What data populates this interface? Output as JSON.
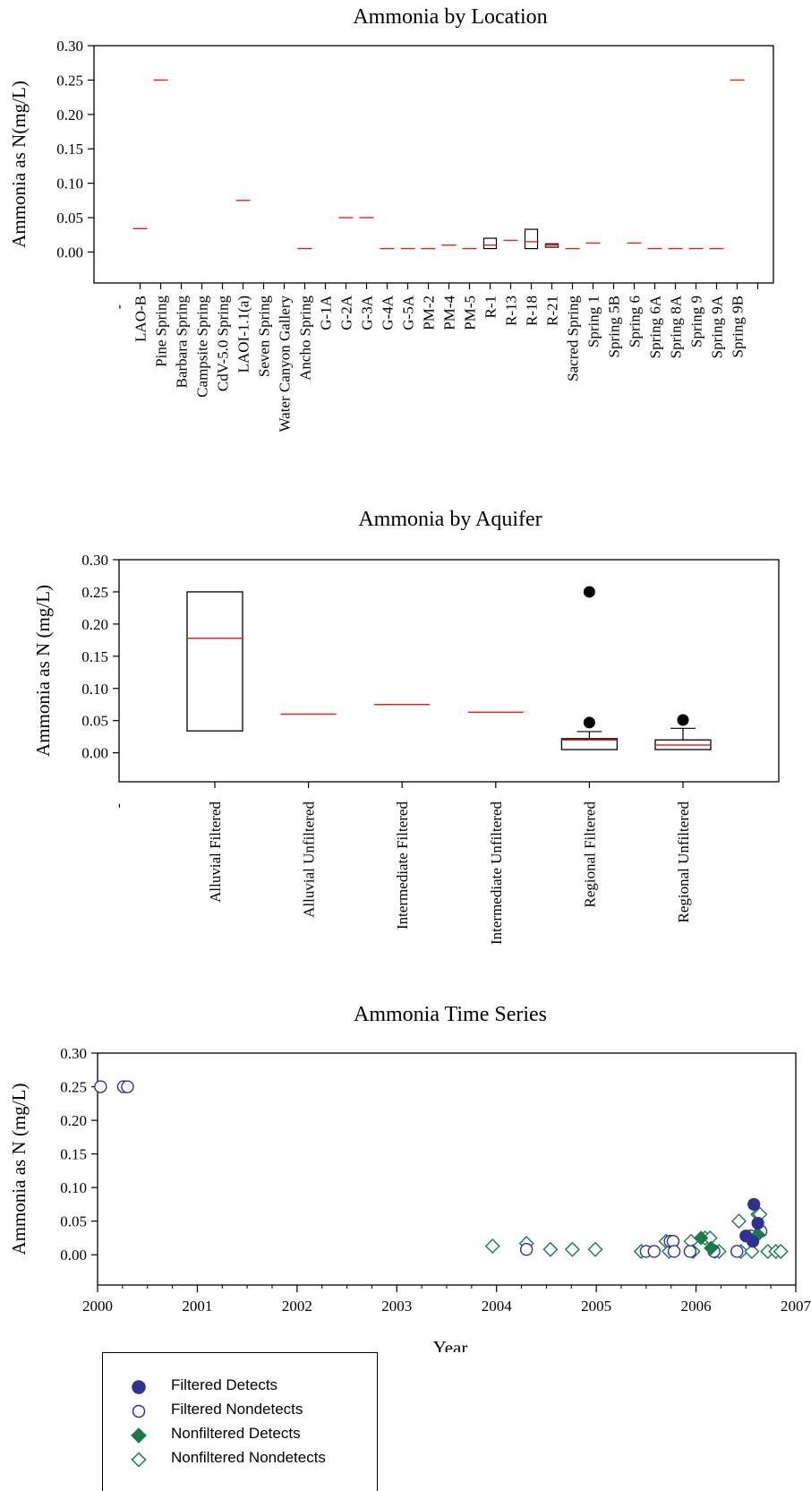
{
  "chart_data": [
    {
      "type": "box",
      "title": "Ammonia by Location",
      "xlabel": "",
      "ylabel": "Ammonia as N(mg/L)",
      "ylim": [
        -0.045,
        0.3
      ],
      "yticks": [
        "0.30",
        "0.25",
        "0.20",
        "0.15",
        "0.10",
        "0.05",
        "0.00"
      ],
      "categories": [
        "-",
        "LAO-B",
        "Pine Spring",
        "Barbara Spring",
        "Campsite Spring",
        "CdV-5.0 Spring",
        "LAOI-1.1(a)",
        "Seven Spring",
        "Water Canyon Gallery",
        "Ancho Spring",
        "G-1A",
        "G-2A",
        "G-3A",
        "G-4A",
        "G-5A",
        "PM-2",
        "PM-4",
        "PM-5",
        "R-1",
        "R-13",
        "R-18",
        "R-21",
        "Sacred Spring",
        "Spring 1",
        "Spring 5B",
        "Spring 6",
        "Spring 6A",
        "Spring 8A",
        "Spring 9",
        "Spring 9A",
        "Spring 9B"
      ],
      "medians": [
        null,
        0.034,
        0.25,
        null,
        null,
        null,
        0.075,
        null,
        null,
        0.005,
        null,
        0.05,
        0.05,
        0.005,
        0.005,
        0.005,
        0.01,
        0.005,
        0.01,
        0.017,
        0.015,
        0.01,
        0.005,
        0.013,
        null,
        0.013,
        0.005,
        0.005,
        0.005,
        0.005,
        0.25
      ],
      "boxes": [
        {
          "category": "R-1",
          "q1": 0.005,
          "q3": 0.02
        },
        {
          "category": "R-18",
          "q1": 0.005,
          "q3": 0.033
        },
        {
          "category": "R-21",
          "q1": 0.007,
          "q3": 0.012
        }
      ]
    },
    {
      "type": "box",
      "title": "Ammonia by Aquifer",
      "xlabel": "",
      "ylabel": "Ammonia as N (mg/L)",
      "ylim": [
        -0.045,
        0.3
      ],
      "yticks": [
        "0.30",
        "0.25",
        "0.20",
        "0.15",
        "0.10",
        "0.05",
        "0.00"
      ],
      "categories": [
        "Alluvial Filtered",
        "Alluvial Unfiltered",
        "Intermediate Filtered",
        "Intermediate Unfiltered",
        "Regional Filtered",
        "Regional Unfiltered"
      ],
      "axis_start_label": "-",
      "stats": [
        {
          "category": "Alluvial Filtered",
          "q1": 0.034,
          "median": 0.178,
          "q3": 0.25,
          "whisker_high": null,
          "outliers": []
        },
        {
          "category": "Alluvial Unfiltered",
          "q1": null,
          "median": 0.06,
          "q3": null,
          "whisker_high": null,
          "outliers": []
        },
        {
          "category": "Intermediate Filtered",
          "q1": null,
          "median": 0.075,
          "q3": null,
          "whisker_high": null,
          "outliers": []
        },
        {
          "category": "Intermediate Unfiltered",
          "q1": null,
          "median": 0.063,
          "q3": null,
          "whisker_high": null,
          "outliers": []
        },
        {
          "category": "Regional Filtered",
          "q1": 0.005,
          "median": 0.02,
          "q3": 0.022,
          "whisker_high": 0.033,
          "outliers": [
            0.047,
            0.25
          ]
        },
        {
          "category": "Regional Unfiltered",
          "q1": 0.005,
          "median": 0.012,
          "q3": 0.02,
          "whisker_high": 0.038,
          "outliers": [
            0.051
          ]
        }
      ]
    },
    {
      "type": "scatter",
      "title": "Ammonia Time Series",
      "xlabel": "Year",
      "ylabel": "Ammonia as N (mg/L)",
      "xlim": [
        2000,
        2007
      ],
      "ylim": [
        -0.045,
        0.3
      ],
      "xticks": [
        "2000",
        "2001",
        "2002",
        "2003",
        "2004",
        "2005",
        "2006",
        "2007"
      ],
      "yticks": [
        "0.30",
        "0.25",
        "0.20",
        "0.15",
        "0.10",
        "0.05",
        "0.00"
      ],
      "series": [
        {
          "name": "Filtered Detects",
          "marker": "circle-filled",
          "color": "#2e3192",
          "points": [
            [
              2006.58,
              0.075
            ],
            [
              2006.62,
              0.047
            ],
            [
              2006.5,
              0.028
            ],
            [
              2006.57,
              0.02
            ]
          ]
        },
        {
          "name": "Filtered Nondetects",
          "marker": "circle-open",
          "color": "#2e3192",
          "points": [
            [
              2000.03,
              0.25
            ],
            [
              2000.26,
              0.25
            ],
            [
              2000.3,
              0.25
            ],
            [
              2004.3,
              0.008
            ],
            [
              2005.5,
              0.005
            ],
            [
              2005.58,
              0.005
            ],
            [
              2005.74,
              0.02
            ],
            [
              2005.77,
              0.02
            ],
            [
              2005.78,
              0.005
            ],
            [
              2005.94,
              0.005
            ],
            [
              2006.18,
              0.005
            ],
            [
              2006.41,
              0.005
            ],
            [
              2006.55,
              0.028
            ],
            [
              2006.65,
              0.035
            ]
          ]
        },
        {
          "name": "Nonfiltered Detects",
          "marker": "diamond-filled",
          "color": "#1a7a4a",
          "points": [
            [
              2006.62,
              0.03
            ],
            [
              2006.15,
              0.01
            ],
            [
              2006.05,
              0.025
            ]
          ]
        },
        {
          "name": "Nonfiltered Nondetects",
          "marker": "diamond-open",
          "color": "#1a7a4a",
          "points": [
            [
              2003.96,
              0.013
            ],
            [
              2004.3,
              0.017
            ],
            [
              2004.54,
              0.008
            ],
            [
              2004.76,
              0.008
            ],
            [
              2004.99,
              0.008
            ],
            [
              2005.45,
              0.005
            ],
            [
              2005.7,
              0.02
            ],
            [
              2005.73,
              0.005
            ],
            [
              2005.95,
              0.02
            ],
            [
              2005.97,
              0.005
            ],
            [
              2006.09,
              0.025
            ],
            [
              2006.14,
              0.025
            ],
            [
              2006.19,
              0.005
            ],
            [
              2006.23,
              0.005
            ],
            [
              2006.43,
              0.05
            ],
            [
              2006.45,
              0.005
            ],
            [
              2006.56,
              0.005
            ],
            [
              2006.62,
              0.06
            ],
            [
              2006.64,
              0.06
            ],
            [
              2006.72,
              0.005
            ],
            [
              2006.8,
              0.005
            ],
            [
              2006.85,
              0.005
            ]
          ]
        }
      ],
      "legend_position": "bottom-left"
    }
  ],
  "legend": {
    "items": [
      {
        "label": "Filtered Detects",
        "marker": "circle-filled",
        "color": "#2e3192"
      },
      {
        "label": "Filtered Nondetects",
        "marker": "circle-open",
        "color": "#2e3192"
      },
      {
        "label": "Nonfiltered Detects",
        "marker": "diamond-filled",
        "color": "#1a7a4a"
      },
      {
        "label": "Nonfiltered Nondetects",
        "marker": "diamond-open",
        "color": "#1a7a4a"
      }
    ]
  },
  "colors": {
    "median": "#d62728",
    "box": "#000000",
    "filtered": "#2e3192",
    "nonfiltered": "#1a7a4a"
  }
}
